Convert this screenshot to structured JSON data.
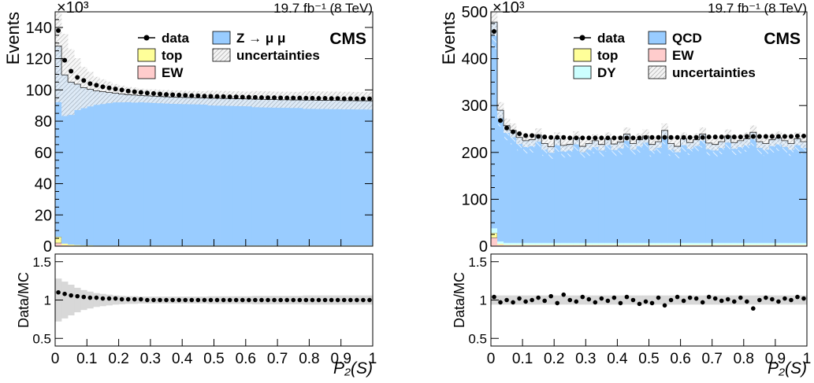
{
  "chart_data": [
    {
      "type": "bar",
      "exponent_label": "×10³",
      "lumi_label": "19.7 fb⁻¹ (8 TeV)",
      "experiment": "CMS",
      "ylabel": "Events",
      "xlabel": "P₂(S)",
      "ratio_ylabel": "Data/MC",
      "ylim": [
        0,
        150
      ],
      "xlim": [
        0,
        1
      ],
      "yticks": [
        "0",
        "20",
        "40",
        "60",
        "80",
        "100",
        "120",
        "140"
      ],
      "xticks": [
        "0",
        "0.1",
        "0.2",
        "0.3",
        "0.4",
        "0.5",
        "0.6",
        "0.7",
        "0.8",
        "0.9",
        "1"
      ],
      "ratio_ylim": [
        0.4,
        1.6
      ],
      "ratio_yticks": [
        "0.5",
        "1",
        "1.5"
      ],
      "legend": [
        {
          "label": "data",
          "kind": "marker"
        },
        {
          "label": "Z → μ μ",
          "kind": "box",
          "color": "#99ccff"
        },
        {
          "label": "top",
          "kind": "box",
          "color": "#ffff99"
        },
        {
          "label": "uncertainties",
          "kind": "hatch"
        },
        {
          "label": "EW",
          "kind": "box",
          "color": "#ffcccc"
        }
      ],
      "bins": 50,
      "series": [
        {
          "name": "Z → μ μ",
          "values": [
            122,
            108,
            104,
            103,
            101,
            100,
            99,
            98.5,
            98,
            97.5,
            97,
            96.6,
            96.3,
            96,
            95.8,
            95.6,
            95.4,
            95.2,
            95,
            94.9,
            94.8,
            94.7,
            94.6,
            94.5,
            94.4,
            94.3,
            94.2,
            94.1,
            94,
            93.9,
            93.8,
            93.7,
            93.6,
            93.5,
            93.4,
            93.3,
            93.3,
            93.2,
            93.2,
            93.1,
            93.1,
            93,
            93,
            92.9,
            92.9,
            92.8,
            92.8,
            92.7,
            92.7,
            92.6
          ]
        },
        {
          "name": "top",
          "values": [
            4,
            1,
            0.6,
            0.4,
            0.3,
            0.3,
            0.2,
            0.2,
            0.2,
            0.2,
            0.2,
            0.2,
            0.2,
            0.2,
            0.2,
            0.2,
            0.2,
            0.2,
            0.2,
            0.2,
            0.2,
            0.2,
            0.2,
            0.2,
            0.2,
            0.2,
            0.2,
            0.2,
            0.2,
            0.2,
            0.2,
            0.2,
            0.2,
            0.2,
            0.2,
            0.2,
            0.2,
            0.2,
            0.2,
            0.2,
            0.2,
            0.2,
            0.2,
            0.2,
            0.2,
            0.2,
            0.2,
            0.2,
            0.2,
            0.2
          ]
        },
        {
          "name": "EW",
          "values": [
            2,
            0.6,
            0.4,
            0.3,
            0.2,
            0.2,
            0.2,
            0.2,
            0.2,
            0.2,
            0.2,
            0.2,
            0.2,
            0.2,
            0.2,
            0.2,
            0.2,
            0.2,
            0.2,
            0.2,
            0.2,
            0.2,
            0.2,
            0.2,
            0.2,
            0.2,
            0.2,
            0.2,
            0.2,
            0.2,
            0.2,
            0.2,
            0.2,
            0.2,
            0.2,
            0.2,
            0.2,
            0.2,
            0.2,
            0.2,
            0.2,
            0.2,
            0.2,
            0.2,
            0.2,
            0.2,
            0.2,
            0.2,
            0.2,
            0.2
          ]
        },
        {
          "name": "data",
          "values": [
            138,
            119,
            112,
            108,
            106,
            104,
            103,
            102,
            101.3,
            100.6,
            100,
            99.3,
            98.8,
            98.4,
            98,
            97.7,
            97.4,
            97.1,
            96.9,
            96.7,
            96.5,
            96.3,
            96.2,
            96,
            95.9,
            95.8,
            95.7,
            95.6,
            95.5,
            95.4,
            95.3,
            95.2,
            95.1,
            95,
            95,
            94.9,
            94.9,
            94.8,
            94.8,
            94.7,
            94.7,
            94.6,
            94.6,
            94.5,
            94.5,
            94.4,
            94.4,
            94.4,
            94.3,
            94.3
          ]
        },
        {
          "name": "uncertainties",
          "values": [
            0.28,
            0.24,
            0.2,
            0.16,
            0.13,
            0.11,
            0.09,
            0.08,
            0.07,
            0.06,
            0.055,
            0.05,
            0.05,
            0.045,
            0.045,
            0.045,
            0.045,
            0.045,
            0.045,
            0.045,
            0.045,
            0.045,
            0.045,
            0.045,
            0.05,
            0.05,
            0.05,
            0.05,
            0.05,
            0.05,
            0.05,
            0.055,
            0.055,
            0.055,
            0.055,
            0.055,
            0.055,
            0.055,
            0.055,
            0.06,
            0.06,
            0.06,
            0.06,
            0.06,
            0.06,
            0.06,
            0.06,
            0.06,
            0.06,
            0.06
          ]
        },
        {
          "name": "Data/MC",
          "values": [
            1.1,
            1.08,
            1.06,
            1.05,
            1.04,
            1.03,
            1.03,
            1.02,
            1.02,
            1.02,
            1.01,
            1.01,
            1.01,
            1.01,
            1.0,
            1.0,
            1.0,
            1.0,
            1.0,
            1.0,
            1.0,
            1.0,
            1.0,
            1.0,
            1.0,
            1.0,
            1.0,
            1.0,
            1.0,
            1.0,
            1.0,
            1.0,
            1.0,
            1.0,
            1.0,
            1.0,
            1.0,
            1.0,
            1.0,
            1.0,
            1.0,
            1.0,
            1.0,
            1.0,
            1.0,
            1.0,
            1.0,
            1.0,
            1.0,
            1.0
          ]
        }
      ]
    },
    {
      "type": "bar",
      "exponent_label": "×10³",
      "lumi_label": "19.7 fb⁻¹ (8 TeV)",
      "experiment": "CMS",
      "ylabel": "Events",
      "xlabel": "P₂(S)",
      "ratio_ylabel": "Data/MC",
      "ylim": [
        0,
        500
      ],
      "xlim": [
        0,
        1
      ],
      "yticks": [
        "0",
        "100",
        "200",
        "300",
        "400",
        "500"
      ],
      "xticks": [
        "0",
        "0.1",
        "0.2",
        "0.3",
        "0.4",
        "0.5",
        "0.6",
        "0.7",
        "0.8",
        "0.9",
        "1"
      ],
      "ratio_ylim": [
        0.4,
        1.6
      ],
      "ratio_yticks": [
        "0.5",
        "1",
        "1.5"
      ],
      "legend": [
        {
          "label": "data",
          "kind": "marker"
        },
        {
          "label": "QCD",
          "kind": "box",
          "color": "#99ccff"
        },
        {
          "label": "top",
          "kind": "box",
          "color": "#ffff99"
        },
        {
          "label": "EW",
          "kind": "box",
          "color": "#ffcccc"
        },
        {
          "label": "DY",
          "kind": "box",
          "color": "#ccffff"
        },
        {
          "label": "uncertainties",
          "kind": "hatch"
        }
      ],
      "bins": 50,
      "series": [
        {
          "name": "QCD",
          "values": [
            440,
            280,
            250,
            240,
            225,
            218,
            220,
            230,
            212,
            205,
            222,
            208,
            210,
            224,
            206,
            212,
            218,
            210,
            222,
            211,
            215,
            232,
            212,
            220,
            228,
            210,
            216,
            240,
            212,
            206,
            222,
            214,
            220,
            232,
            213,
            210,
            216,
            228,
            214,
            218,
            222,
            236,
            216,
            212,
            220,
            224,
            218,
            212,
            222,
            216
          ]
        },
        {
          "name": "top",
          "values": [
            10,
            2,
            1,
            1,
            1,
            1,
            1,
            1,
            1,
            1,
            1,
            1,
            1,
            1,
            1,
            1,
            1,
            1,
            1,
            1,
            1,
            1,
            1,
            1,
            1,
            1,
            1,
            1,
            1,
            1,
            1,
            1,
            1,
            1,
            1,
            1,
            1,
            1,
            1,
            1,
            1,
            1,
            1,
            1,
            1,
            1,
            1,
            1,
            1,
            1
          ]
        },
        {
          "name": "EW",
          "values": [
            18,
            3,
            2,
            2,
            2,
            2,
            2,
            2,
            2,
            2,
            2,
            2,
            2,
            2,
            2,
            2,
            2,
            2,
            2,
            2,
            2,
            2,
            2,
            2,
            2,
            2,
            2,
            2,
            2,
            2,
            2,
            2,
            2,
            2,
            2,
            2,
            2,
            2,
            2,
            2,
            2,
            2,
            2,
            2,
            2,
            2,
            2,
            2,
            2,
            2
          ]
        },
        {
          "name": "DY",
          "values": [
            10,
            5,
            4,
            4,
            4,
            4,
            4,
            4,
            4,
            4,
            4,
            4,
            4,
            4,
            4,
            4,
            4,
            4,
            4,
            4,
            4,
            4,
            4,
            4,
            4,
            4,
            4,
            4,
            4,
            4,
            4,
            4,
            4,
            4,
            4,
            4,
            4,
            4,
            4,
            4,
            4,
            4,
            4,
            4,
            4,
            4,
            4,
            4,
            4,
            4
          ]
        },
        {
          "name": "data",
          "values": [
            458,
            268,
            252,
            244,
            240,
            236,
            236,
            234,
            233,
            232,
            232,
            232,
            231,
            231,
            231,
            231,
            231,
            231,
            231,
            231,
            231,
            231,
            231,
            231,
            232,
            232,
            232,
            232,
            232,
            232,
            232,
            232,
            232,
            232,
            233,
            233,
            233,
            233,
            233,
            233,
            234,
            234,
            234,
            234,
            234,
            234,
            234,
            234,
            235,
            235
          ]
        },
        {
          "name": "uncertainties",
          "values": [
            0.06,
            0.06,
            0.06,
            0.06,
            0.06,
            0.06,
            0.06,
            0.06,
            0.06,
            0.06,
            0.06,
            0.06,
            0.06,
            0.06,
            0.06,
            0.06,
            0.06,
            0.06,
            0.06,
            0.06,
            0.06,
            0.06,
            0.06,
            0.06,
            0.06,
            0.06,
            0.06,
            0.06,
            0.06,
            0.06,
            0.06,
            0.06,
            0.06,
            0.06,
            0.06,
            0.06,
            0.06,
            0.06,
            0.06,
            0.06,
            0.06,
            0.06,
            0.06,
            0.06,
            0.06,
            0.06,
            0.06,
            0.06,
            0.06,
            0.06
          ]
        },
        {
          "name": "Data/MC",
          "values": [
            1.04,
            0.97,
            1.0,
            0.97,
            1.02,
            0.98,
            1.0,
            1.03,
            0.99,
            1.05,
            0.96,
            1.07,
            1.0,
            0.98,
            1.04,
            1.01,
            0.97,
            1.02,
            0.99,
            1.03,
            0.96,
            1.04,
            1.0,
            0.95,
            0.98,
            0.96,
            1.03,
            0.93,
            1.0,
            1.04,
            0.99,
            1.03,
            1.02,
            0.97,
            1.04,
            1.02,
            0.99,
            1.01,
            0.98,
            1.03,
            0.98,
            0.89,
            1.0,
            1.03,
            1.01,
            0.98,
            1.02,
            1.0,
            1.04,
            1.02
          ]
        }
      ]
    }
  ]
}
